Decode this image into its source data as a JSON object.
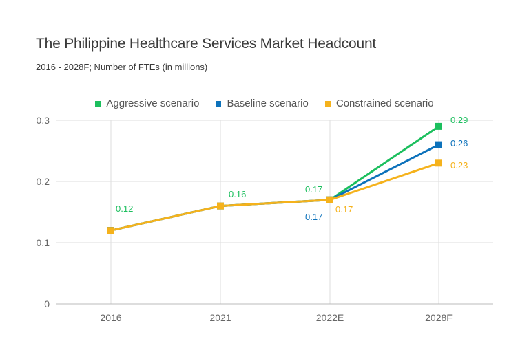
{
  "colors": {
    "aggressive": "#1cbf5e",
    "baseline": "#0d72bb",
    "constrained": "#f5b21c",
    "grid": "#dddddd",
    "axis": "#bbbbbb"
  },
  "chart_data": {
    "type": "line",
    "title": "The Philippine Healthcare Services Market Headcount",
    "subtitle": "2016 - 2028F; Number of FTEs (in millions)",
    "xlabel": "",
    "ylabel": "",
    "categories": [
      "2016",
      "2021",
      "2022E",
      "2028F"
    ],
    "ylim": [
      0,
      0.3
    ],
    "yticks": [
      "0",
      "0.1",
      "0.2",
      "0.3"
    ],
    "legend_position": "top-center",
    "series": [
      {
        "key": "aggressive",
        "name": "Aggressive scenario",
        "values": [
          0.12,
          0.16,
          0.17,
          0.29
        ],
        "labels": [
          "0.12",
          "0.16",
          "0.17",
          "0.29"
        ]
      },
      {
        "key": "baseline",
        "name": "Baseline scenario",
        "values": [
          0.12,
          0.16,
          0.17,
          0.26
        ],
        "labels": [
          "",
          "",
          "0.17",
          "0.26"
        ]
      },
      {
        "key": "constrained",
        "name": "Constrained scenario",
        "values": [
          0.12,
          0.16,
          0.17,
          0.23
        ],
        "labels": [
          "",
          "",
          "0.17",
          "0.23"
        ]
      }
    ]
  }
}
